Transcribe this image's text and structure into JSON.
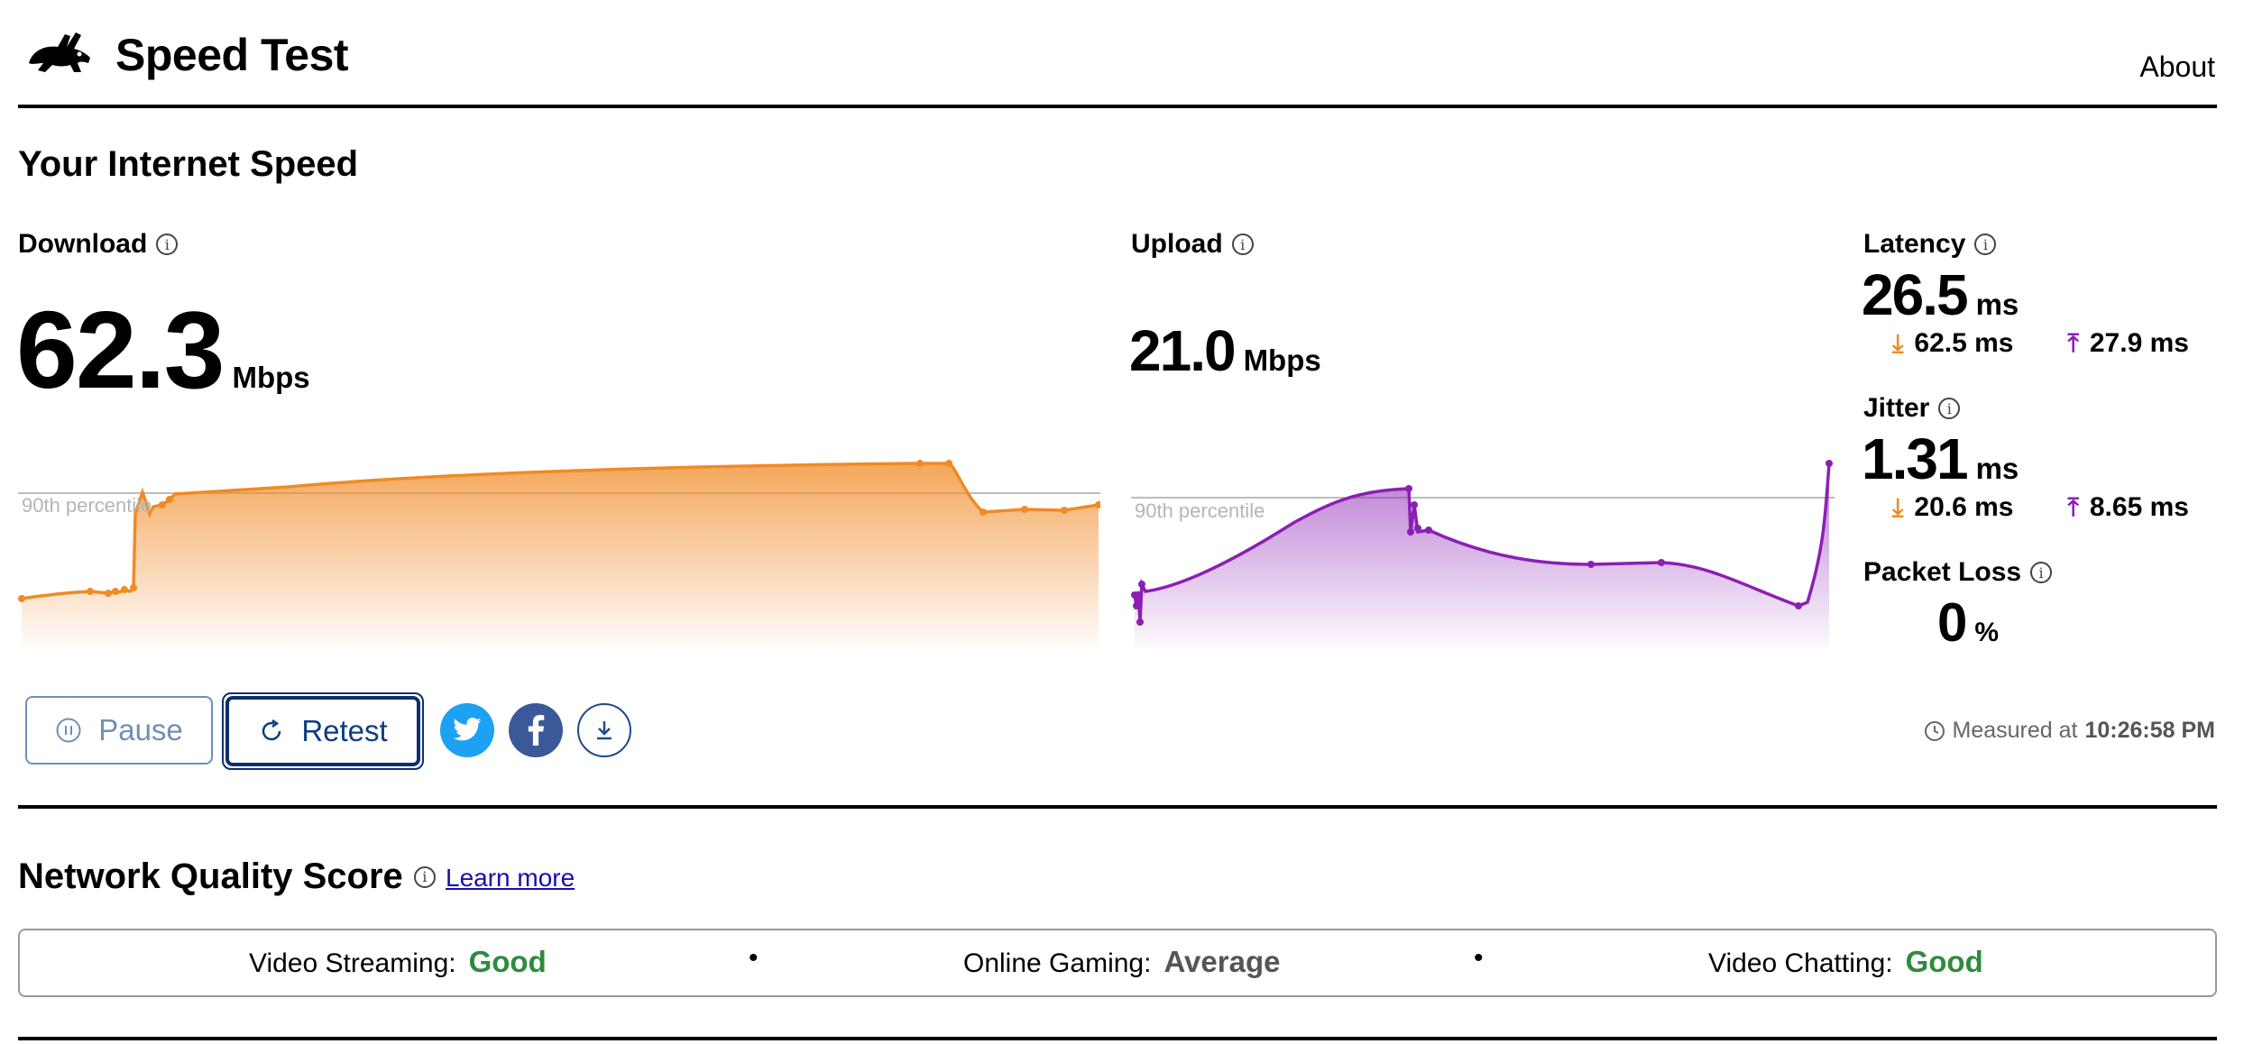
{
  "header": {
    "title": "Speed Test",
    "about_label": "About"
  },
  "section_title": "Your Internet Speed",
  "download": {
    "label": "Download",
    "value": "62.3",
    "unit": "Mbps",
    "percentile_label": "90th percentile",
    "color": "#f08a24"
  },
  "upload": {
    "label": "Upload",
    "value": "21.0",
    "unit": "Mbps",
    "percentile_label": "90th percentile",
    "color": "#8b1fb3"
  },
  "latency": {
    "label": "Latency",
    "value": "26.5",
    "unit": "ms",
    "down_value": "62.5 ms",
    "up_value": "27.9 ms"
  },
  "jitter": {
    "label": "Jitter",
    "value": "1.31",
    "unit": "ms",
    "down_value": "20.6 ms",
    "up_value": "8.65 ms"
  },
  "packet_loss": {
    "label": "Packet Loss",
    "value": "0",
    "unit": "%"
  },
  "buttons": {
    "pause_label": "Pause",
    "retest_label": "Retest",
    "share_icons": [
      "twitter-icon",
      "facebook-icon",
      "download-icon"
    ]
  },
  "measured": {
    "prefix": "Measured at",
    "time": "10:26:58 PM"
  },
  "network_quality": {
    "title": "Network Quality Score",
    "learn_more": "Learn more",
    "items": [
      {
        "label": "Video Streaming:",
        "value": "Good",
        "color": "#2e8b3e"
      },
      {
        "label": "Online Gaming:",
        "value": "Average",
        "color": "#555555"
      },
      {
        "label": "Video Chatting:",
        "value": "Good",
        "color": "#2e8b3e"
      }
    ]
  },
  "colors": {
    "download": "#f08a24",
    "upload": "#8b1fb3",
    "accent": "#0d2e6e",
    "good": "#2e8b3e"
  }
}
